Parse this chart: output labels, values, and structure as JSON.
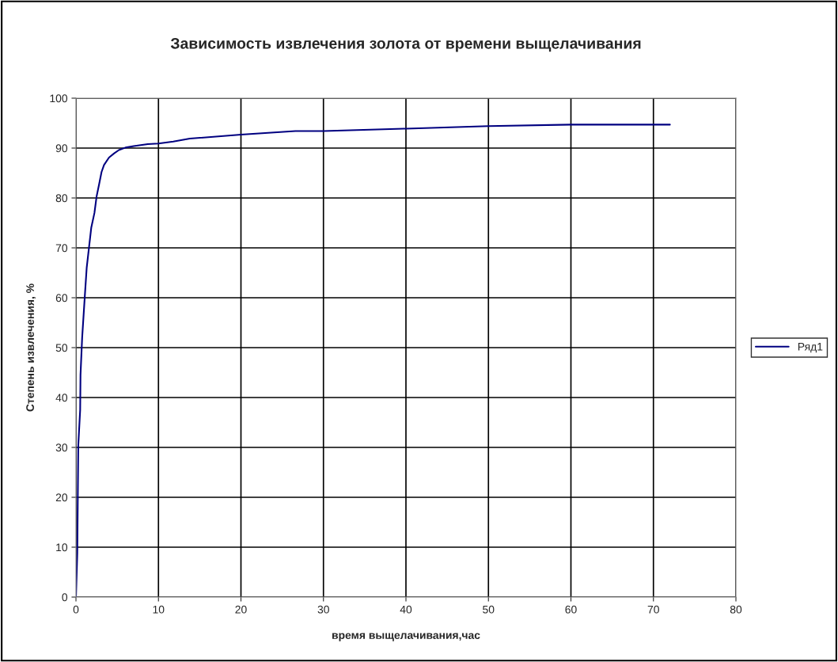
{
  "chart_data": {
    "type": "line",
    "title": "Зависимость извлечения золота от времени выщелачивания",
    "xlabel": "время выщелачивания,час",
    "ylabel": "Степень извлечения, %",
    "xlim": [
      0,
      80
    ],
    "xticks": [
      0,
      10,
      20,
      30,
      40,
      50,
      60,
      70,
      80
    ],
    "ylim": [
      0,
      100
    ],
    "yticks": [
      0,
      10,
      20,
      30,
      40,
      50,
      60,
      70,
      80,
      90,
      100
    ],
    "grid": true,
    "legend": "right",
    "marker": "none",
    "line_style": "solid",
    "series": [
      {
        "name": "Ряд1",
        "color": "#000080",
        "x": [
          0,
          0.16,
          0.28,
          0.51,
          0.55,
          0.75,
          1.06,
          1.3,
          1.85,
          2.24,
          2.5,
          2.8,
          3.1,
          3.4,
          4.0,
          4.6,
          5.2,
          6.0,
          7.0,
          8.7,
          10.0,
          11.8,
          13.8,
          20,
          26.6,
          30,
          40,
          50,
          60,
          72
        ],
        "values": [
          0,
          8.8,
          30.4,
          37.5,
          44.5,
          52,
          60,
          66,
          74,
          77,
          80.3,
          82.7,
          85.2,
          86.6,
          88.1,
          88.9,
          89.6,
          90.1,
          90.4,
          90.8,
          90.9,
          91.3,
          91.9,
          92.7,
          93.4,
          93.4,
          93.9,
          94.4,
          94.7,
          94.7
        ]
      }
    ]
  }
}
